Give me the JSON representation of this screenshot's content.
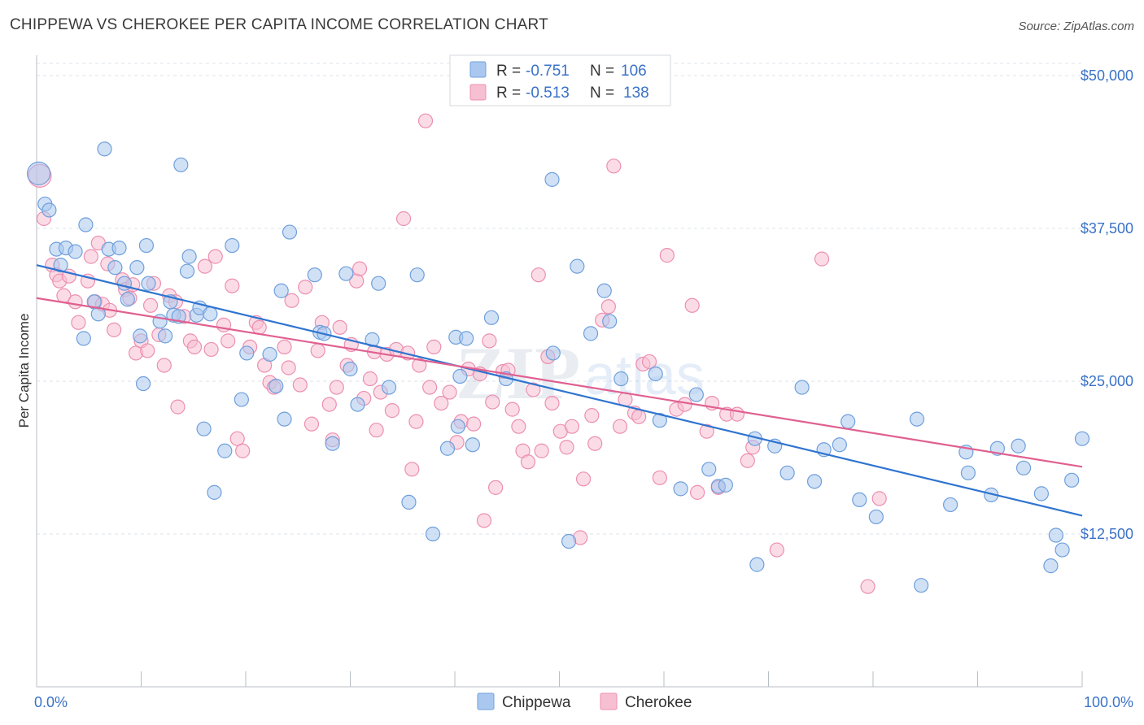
{
  "title": "CHIPPEWA VS CHEROKEE PER CAPITA INCOME CORRELATION CHART",
  "source": "Source: ZipAtlas.com",
  "colors": {
    "chippewa_fill": "#aac8ef",
    "chippewa_stroke": "#6f9fdc",
    "chippewa_line": "#2f74d0",
    "cherokee_fill": "#f7bfd2",
    "cherokee_stroke": "#ec8fb0",
    "cherokee_line": "#e06090",
    "tick_text": "#3a72c8",
    "grid": "#dde3ea"
  },
  "legend": {
    "rows": [
      {
        "r_label": "R =",
        "r_value": "-0.751",
        "n_label": "N =",
        "n_value": "106"
      },
      {
        "r_label": "R =",
        "r_value": "-0.513",
        "n_label": "N =",
        "n_value": "138"
      }
    ]
  },
  "watermark": {
    "zip": "ZIP",
    "atlas": "atlas"
  },
  "chart_data": {
    "type": "scatter",
    "title": "CHIPPEWA VS CHEROKEE PER CAPITA INCOME CORRELATION CHART",
    "xlabel": "",
    "ylabel": "Per Capita Income",
    "xlim": [
      0,
      100
    ],
    "ylim": [
      0,
      51000
    ],
    "x_tick_labels": [
      "0.0%",
      "100.0%"
    ],
    "y_ticks": [
      12500,
      25000,
      37500,
      50000
    ],
    "y_tick_labels": [
      "$12,500",
      "$25,000",
      "$37,500",
      "$50,000"
    ],
    "grid": true,
    "legend_position": "top-center",
    "series": [
      {
        "name": "Chippewa",
        "r": -0.751,
        "n": 106,
        "trend": {
          "x": [
            0,
            100
          ],
          "y": [
            34500,
            14000
          ]
        },
        "points": [
          [
            0.2,
            42000
          ],
          [
            0.8,
            39500
          ],
          [
            1.2,
            39000
          ],
          [
            1.9,
            35800
          ],
          [
            2.3,
            34500
          ],
          [
            2.8,
            35900
          ],
          [
            3.7,
            35600
          ],
          [
            4.5,
            28500
          ],
          [
            4.7,
            37800
          ],
          [
            5.5,
            31500
          ],
          [
            5.9,
            30500
          ],
          [
            6.5,
            44000
          ],
          [
            6.9,
            35800
          ],
          [
            7.5,
            34300
          ],
          [
            7.9,
            35900
          ],
          [
            8.4,
            33000
          ],
          [
            8.7,
            31700
          ],
          [
            9.6,
            34300
          ],
          [
            9.9,
            28700
          ],
          [
            10.2,
            24800
          ],
          [
            10.5,
            36100
          ],
          [
            10.7,
            33000
          ],
          [
            11.8,
            29900
          ],
          [
            12.3,
            28700
          ],
          [
            12.8,
            31500
          ],
          [
            13.1,
            30400
          ],
          [
            13.6,
            30300
          ],
          [
            13.8,
            42700
          ],
          [
            14.4,
            34000
          ],
          [
            14.6,
            35200
          ],
          [
            15.3,
            30400
          ],
          [
            15.6,
            31000
          ],
          [
            16.0,
            21100
          ],
          [
            16.6,
            30500
          ],
          [
            17.0,
            15900
          ],
          [
            18.0,
            19300
          ],
          [
            18.7,
            36100
          ],
          [
            19.6,
            23500
          ],
          [
            20.1,
            27300
          ],
          [
            22.3,
            27200
          ],
          [
            22.9,
            24600
          ],
          [
            23.4,
            32400
          ],
          [
            23.7,
            21900
          ],
          [
            24.2,
            37200
          ],
          [
            26.6,
            33700
          ],
          [
            27.1,
            29000
          ],
          [
            27.5,
            28900
          ],
          [
            28.3,
            19900
          ],
          [
            29.6,
            33800
          ],
          [
            30.0,
            26000
          ],
          [
            30.7,
            23100
          ],
          [
            32.1,
            28400
          ],
          [
            32.7,
            33000
          ],
          [
            33.7,
            24500
          ],
          [
            35.6,
            15100
          ],
          [
            36.4,
            33700
          ],
          [
            37.9,
            12500
          ],
          [
            39.3,
            19500
          ],
          [
            40.1,
            28600
          ],
          [
            40.3,
            21300
          ],
          [
            40.5,
            25400
          ],
          [
            41.1,
            28500
          ],
          [
            41.7,
            19800
          ],
          [
            43.5,
            30200
          ],
          [
            44.9,
            25200
          ],
          [
            49.3,
            41500
          ],
          [
            49.4,
            27300
          ],
          [
            50.9,
            11900
          ],
          [
            51.7,
            34400
          ],
          [
            53.0,
            28900
          ],
          [
            54.3,
            32400
          ],
          [
            54.8,
            29900
          ],
          [
            55.9,
            25200
          ],
          [
            59.2,
            25600
          ],
          [
            59.6,
            21800
          ],
          [
            61.6,
            16200
          ],
          [
            63.1,
            23900
          ],
          [
            64.3,
            17800
          ],
          [
            65.2,
            16400
          ],
          [
            65.9,
            16500
          ],
          [
            68.7,
            20300
          ],
          [
            68.9,
            10000
          ],
          [
            70.6,
            19700
          ],
          [
            71.8,
            17500
          ],
          [
            73.2,
            24500
          ],
          [
            74.4,
            16800
          ],
          [
            75.3,
            19400
          ],
          [
            76.8,
            19800
          ],
          [
            77.6,
            21700
          ],
          [
            78.7,
            15300
          ],
          [
            80.3,
            13900
          ],
          [
            84.2,
            21900
          ],
          [
            84.6,
            8300
          ],
          [
            87.4,
            14900
          ],
          [
            88.9,
            19200
          ],
          [
            89.1,
            17500
          ],
          [
            91.3,
            15700
          ],
          [
            91.9,
            19500
          ],
          [
            93.9,
            19700
          ],
          [
            94.4,
            17900
          ],
          [
            96.1,
            15800
          ],
          [
            97.0,
            9900
          ],
          [
            97.5,
            12400
          ],
          [
            98.1,
            11200
          ],
          [
            99.0,
            16900
          ],
          [
            100.0,
            20300
          ]
        ]
      },
      {
        "name": "Cherokee",
        "r": -0.513,
        "n": 138,
        "trend": {
          "x": [
            0,
            100
          ],
          "y": [
            31800,
            18000
          ]
        },
        "points": [
          [
            0.3,
            41800
          ],
          [
            0.7,
            38300
          ],
          [
            1.5,
            34500
          ],
          [
            1.9,
            33700
          ],
          [
            2.2,
            33200
          ],
          [
            2.6,
            32000
          ],
          [
            3.1,
            33600
          ],
          [
            3.7,
            31500
          ],
          [
            4.0,
            29800
          ],
          [
            4.9,
            33200
          ],
          [
            5.2,
            35200
          ],
          [
            5.6,
            31500
          ],
          [
            5.9,
            36300
          ],
          [
            6.3,
            31300
          ],
          [
            6.8,
            34600
          ],
          [
            7.0,
            30800
          ],
          [
            7.4,
            29200
          ],
          [
            8.2,
            33300
          ],
          [
            8.5,
            32500
          ],
          [
            8.9,
            31800
          ],
          [
            9.2,
            32900
          ],
          [
            9.5,
            27300
          ],
          [
            10.0,
            28300
          ],
          [
            10.6,
            27500
          ],
          [
            10.9,
            31200
          ],
          [
            11.2,
            33000
          ],
          [
            11.7,
            28800
          ],
          [
            12.2,
            26300
          ],
          [
            12.7,
            32000
          ],
          [
            13.3,
            31500
          ],
          [
            13.5,
            22900
          ],
          [
            14.1,
            30300
          ],
          [
            14.7,
            28300
          ],
          [
            15.1,
            27800
          ],
          [
            16.1,
            34400
          ],
          [
            16.7,
            27600
          ],
          [
            17.1,
            35200
          ],
          [
            17.9,
            29600
          ],
          [
            18.3,
            28300
          ],
          [
            18.7,
            32800
          ],
          [
            19.2,
            20300
          ],
          [
            19.7,
            19300
          ],
          [
            20.4,
            27800
          ],
          [
            21.0,
            29800
          ],
          [
            21.3,
            29400
          ],
          [
            21.8,
            26300
          ],
          [
            22.3,
            24900
          ],
          [
            22.7,
            24500
          ],
          [
            23.7,
            27800
          ],
          [
            24.1,
            26100
          ],
          [
            24.4,
            31600
          ],
          [
            25.2,
            24700
          ],
          [
            25.7,
            32700
          ],
          [
            26.3,
            21500
          ],
          [
            26.9,
            27500
          ],
          [
            27.3,
            29800
          ],
          [
            28.0,
            23100
          ],
          [
            28.3,
            20200
          ],
          [
            28.7,
            24500
          ],
          [
            29.0,
            29400
          ],
          [
            29.7,
            26300
          ],
          [
            30.1,
            28000
          ],
          [
            30.6,
            33200
          ],
          [
            30.9,
            34200
          ],
          [
            31.3,
            23600
          ],
          [
            31.9,
            25200
          ],
          [
            32.3,
            27400
          ],
          [
            32.5,
            21000
          ],
          [
            32.9,
            24100
          ],
          [
            33.5,
            27200
          ],
          [
            34.0,
            22600
          ],
          [
            34.4,
            27600
          ],
          [
            35.1,
            38300
          ],
          [
            35.5,
            27300
          ],
          [
            35.9,
            17800
          ],
          [
            36.3,
            21700
          ],
          [
            36.6,
            26300
          ],
          [
            37.2,
            46300
          ],
          [
            37.6,
            24500
          ],
          [
            38.0,
            27800
          ],
          [
            38.7,
            23200
          ],
          [
            39.5,
            24100
          ],
          [
            40.2,
            20000
          ],
          [
            40.6,
            21700
          ],
          [
            41.3,
            26000
          ],
          [
            41.8,
            21500
          ],
          [
            42.4,
            25600
          ],
          [
            42.8,
            13600
          ],
          [
            43.3,
            28300
          ],
          [
            43.6,
            23300
          ],
          [
            43.9,
            16300
          ],
          [
            44.6,
            25800
          ],
          [
            45.1,
            25900
          ],
          [
            45.5,
            22700
          ],
          [
            46.1,
            21300
          ],
          [
            46.5,
            19300
          ],
          [
            47.0,
            18400
          ],
          [
            47.5,
            24300
          ],
          [
            48.0,
            33700
          ],
          [
            48.3,
            19300
          ],
          [
            48.9,
            27000
          ],
          [
            49.3,
            23200
          ],
          [
            50.1,
            20900
          ],
          [
            50.7,
            19600
          ],
          [
            51.2,
            21300
          ],
          [
            52.0,
            12200
          ],
          [
            52.3,
            17000
          ],
          [
            53.1,
            22200
          ],
          [
            53.4,
            19900
          ],
          [
            54.1,
            30000
          ],
          [
            54.7,
            31100
          ],
          [
            55.2,
            42600
          ],
          [
            55.8,
            21300
          ],
          [
            56.3,
            23500
          ],
          [
            57.2,
            22400
          ],
          [
            57.6,
            22100
          ],
          [
            58.0,
            26400
          ],
          [
            58.6,
            26600
          ],
          [
            59.6,
            17100
          ],
          [
            60.3,
            35300
          ],
          [
            61.2,
            22700
          ],
          [
            62.0,
            23100
          ],
          [
            62.7,
            31200
          ],
          [
            63.2,
            15900
          ],
          [
            64.1,
            20900
          ],
          [
            64.6,
            23200
          ],
          [
            65.2,
            16300
          ],
          [
            66.0,
            22300
          ],
          [
            67.0,
            22300
          ],
          [
            68.0,
            18500
          ],
          [
            68.5,
            19600
          ],
          [
            70.8,
            11200
          ],
          [
            75.1,
            35000
          ],
          [
            79.5,
            8200
          ],
          [
            80.6,
            15400
          ]
        ]
      }
    ]
  },
  "bottom_legend": [
    "Chippewa",
    "Cherokee"
  ]
}
